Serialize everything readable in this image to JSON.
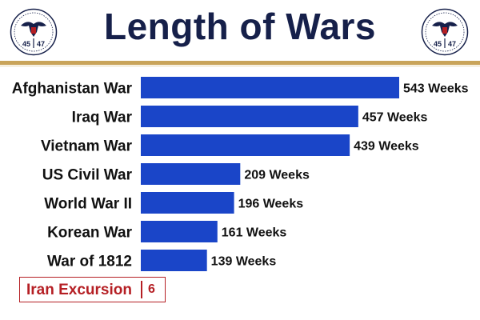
{
  "header": {
    "title": "Length of Wars",
    "seal_text_left": "45",
    "seal_text_right": "47",
    "seal_icon": "presidential-seal-eagle"
  },
  "colors": {
    "bar": "#1a45c8",
    "title": "#16204a",
    "gold_rule": "#c9a45a",
    "highlight": "#b51f24"
  },
  "chart_data": {
    "type": "bar",
    "orientation": "horizontal",
    "title": "Length of Wars",
    "categories": [
      "Afghanistan War",
      "Iraq War",
      "Vietnam War",
      "US Civil War",
      "World War II",
      "Korean War",
      "War of 1812"
    ],
    "values": [
      543,
      457,
      439,
      209,
      196,
      161,
      139
    ],
    "value_labels": [
      "543 Weeks",
      "457 Weeks",
      "439 Weeks",
      "209 Weeks",
      "196 Weeks",
      "161 Weeks",
      "139 Weeks"
    ],
    "unit": "Weeks",
    "xlim": [
      0,
      543
    ],
    "grid": false,
    "legend": "none"
  },
  "callout": {
    "label": "Iran Excursion",
    "value": "6"
  }
}
